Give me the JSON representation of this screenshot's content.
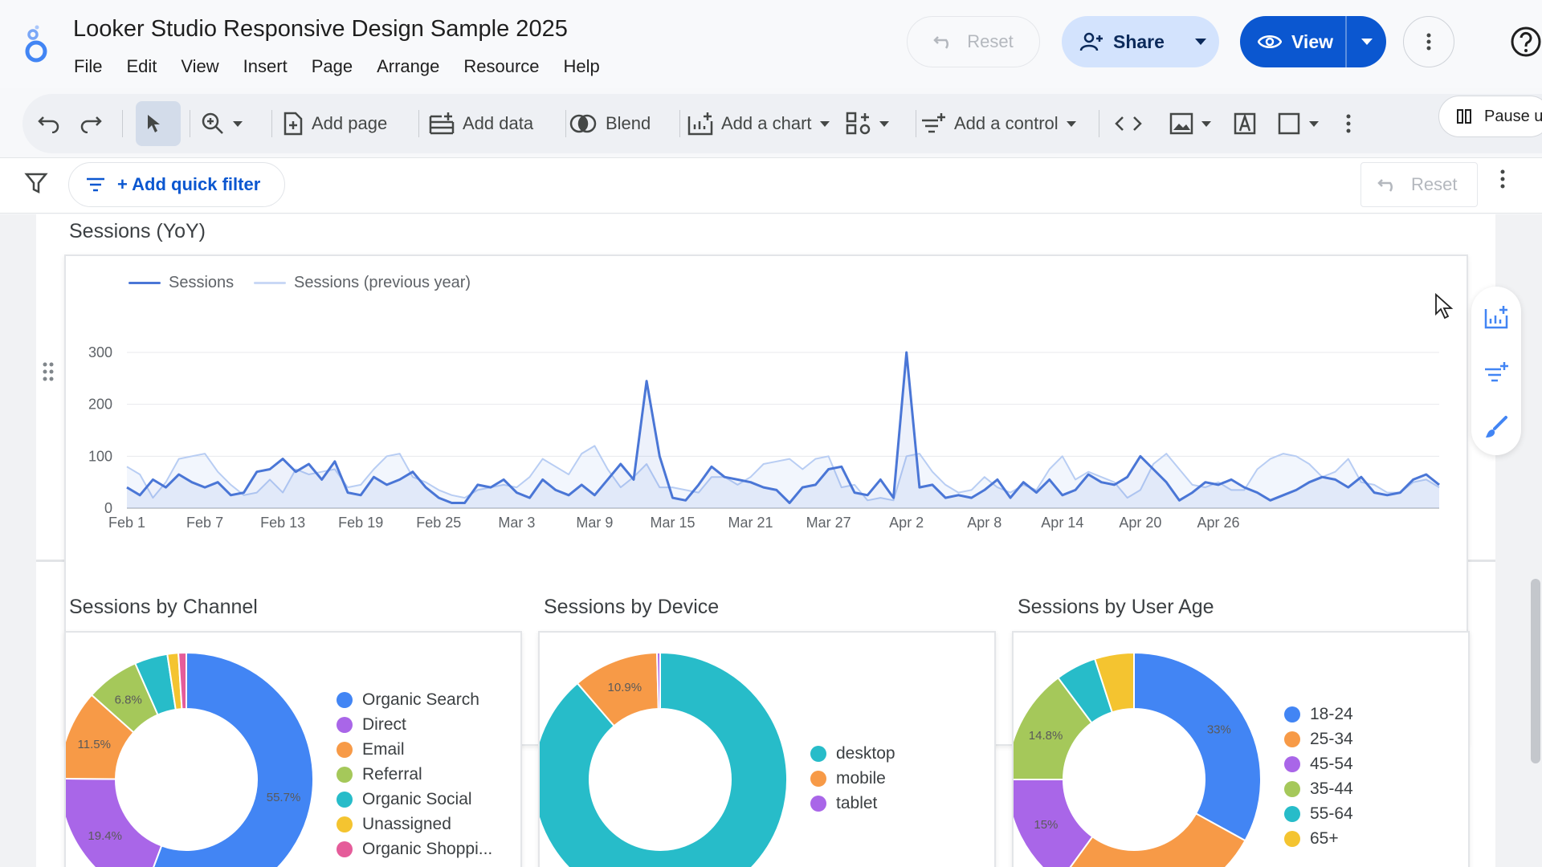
{
  "header": {
    "title": "Looker Studio Responsive Design Sample 2025",
    "menu": [
      "File",
      "Edit",
      "View",
      "Insert",
      "Page",
      "Arrange",
      "Resource",
      "Help"
    ],
    "reset_label": "Reset",
    "share_label": "Share",
    "view_label": "View"
  },
  "toolbar": {
    "add_page": "Add page",
    "add_data": "Add data",
    "blend": "Blend",
    "add_chart": "Add a chart",
    "add_control": "Add a control",
    "pause_label": "Pause u"
  },
  "filterbar": {
    "quick_filter": "+ Add quick filter",
    "reset_label": "Reset"
  },
  "colors": {
    "accent": "#0b57d0",
    "line_current": "#4a76d6",
    "line_previous": "#b8cdf3"
  },
  "chart_data": [
    {
      "type": "line",
      "title": "Sessions (YoY)",
      "series": [
        {
          "name": "Sessions",
          "values": [
            40,
            25,
            55,
            40,
            65,
            50,
            40,
            50,
            25,
            30,
            70,
            75,
            95,
            70,
            85,
            55,
            90,
            30,
            25,
            60,
            45,
            55,
            70,
            40,
            20,
            10,
            10,
            45,
            40,
            55,
            30,
            20,
            55,
            35,
            25,
            45,
            25,
            55,
            85,
            55,
            245,
            100,
            20,
            15,
            45,
            80,
            60,
            55,
            50,
            40,
            35,
            10,
            40,
            45,
            75,
            80,
            30,
            25,
            55,
            20,
            300,
            40,
            45,
            20,
            25,
            20,
            35,
            55,
            20,
            50,
            30,
            55,
            25,
            35,
            65,
            50,
            45,
            60,
            100,
            75,
            50,
            15,
            30,
            50,
            45,
            55,
            40,
            30,
            15,
            25,
            35,
            50,
            60,
            55,
            40,
            60,
            30,
            25,
            30,
            55,
            65,
            45
          ]
        },
        {
          "name": "Sessions (previous year)",
          "values": [
            80,
            65,
            20,
            50,
            95,
            100,
            105,
            70,
            45,
            25,
            30,
            55,
            30,
            75,
            65,
            70,
            75,
            40,
            45,
            75,
            100,
            105,
            60,
            50,
            35,
            25,
            20,
            35,
            40,
            45,
            40,
            60,
            95,
            80,
            65,
            105,
            120,
            75,
            40,
            60,
            85,
            40,
            40,
            35,
            30,
            60,
            60,
            45,
            60,
            85,
            90,
            95,
            75,
            95,
            100,
            40,
            45,
            15,
            20,
            15,
            100,
            105,
            70,
            45,
            30,
            35,
            60,
            40,
            30,
            45,
            35,
            75,
            100,
            55,
            70,
            60,
            50,
            20,
            35,
            85,
            105,
            75,
            45,
            40,
            50,
            35,
            35,
            75,
            95,
            105,
            100,
            85,
            60,
            70,
            95,
            50,
            45,
            30,
            30,
            50,
            55,
            40
          ]
        }
      ],
      "x_tick_labels": [
        "Feb 1",
        "Feb 7",
        "Feb 13",
        "Feb 19",
        "Feb 25",
        "Mar 3",
        "Mar 9",
        "Mar 15",
        "Mar 21",
        "Mar 27",
        "Apr 2",
        "Apr 8",
        "Apr 14",
        "Apr 20",
        "Apr 26"
      ],
      "y_tick_labels": [
        "300",
        "200",
        "100",
        "0"
      ],
      "ylim": [
        0,
        300
      ],
      "grid": true,
      "legend": "top-left"
    },
    {
      "type": "pie",
      "title": "Sessions by Channel",
      "categories": [
        "Organic Search",
        "Direct",
        "Email",
        "Referral",
        "Organic Social",
        "Unassigned",
        "Organic Shoppi..."
      ],
      "values": [
        55.7,
        19.4,
        11.5,
        6.8,
        4.2,
        1.4,
        1.0
      ],
      "slice_labels": [
        "55.7%",
        "19.4%",
        "11.5%",
        "6.8%",
        "",
        "",
        ""
      ],
      "colors": [
        "#4285f4",
        "#a966e8",
        "#f79a47",
        "#a5c85a",
        "#27bcc9",
        "#f4c430",
        "#e55c9a"
      ],
      "legend": "right"
    },
    {
      "type": "pie",
      "title": "Sessions by Device",
      "categories": [
        "desktop",
        "mobile",
        "tablet"
      ],
      "values": [
        88.7,
        10.9,
        0.4
      ],
      "slice_labels": [
        "88.7%",
        "10.9%",
        ""
      ],
      "colors": [
        "#27bcc9",
        "#f79a47",
        "#a966e8"
      ],
      "legend": "right"
    },
    {
      "type": "pie",
      "title": "Sessions by User Age",
      "categories": [
        "18-24",
        "25-34",
        "45-54",
        "35-44",
        "55-64",
        "65+"
      ],
      "values": [
        33,
        27,
        15,
        14.8,
        5.2,
        5
      ],
      "slice_labels": [
        "33%",
        "",
        "15%",
        "14.8%",
        "",
        ""
      ],
      "colors": [
        "#4285f4",
        "#f79a47",
        "#a966e8",
        "#a5c85a",
        "#27bcc9",
        "#f4c430"
      ],
      "legend": "right"
    }
  ]
}
